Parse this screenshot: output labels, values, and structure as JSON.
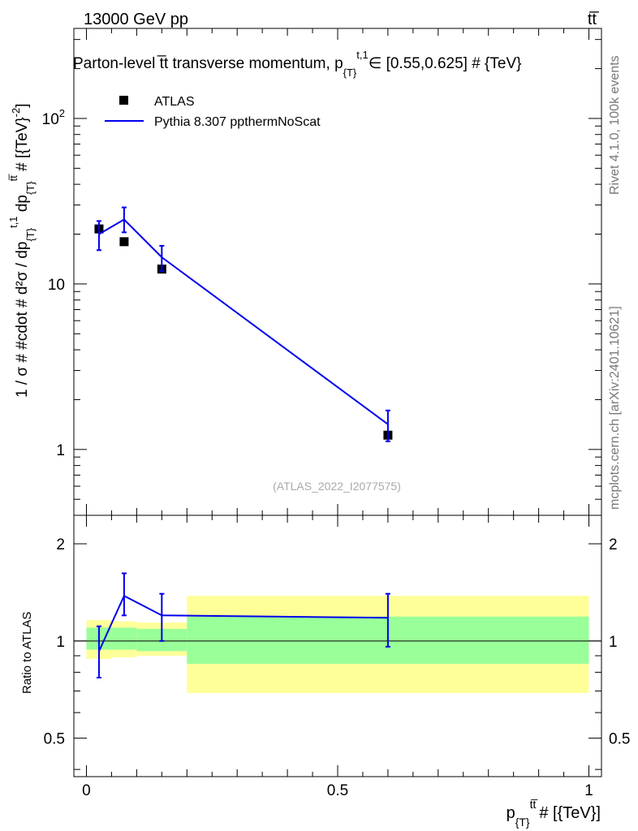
{
  "header": {
    "left": "13000 GeV pp",
    "right": "tt̅"
  },
  "chart_data": {
    "type": "line",
    "title": "Parton-level t̅t transverse momentum, p_{T}^{t,1} ∈ [0.55,0.625] # {TeV}",
    "title_main": "Parton-level t̅t transverse momentum, p",
    "title_sub": "{T}",
    "title_sup": "t,1",
    "title_tail": "∈ [0.55,0.625] # {TeV}",
    "xlabel": "p_{T}^{tt̅} # [{TeV}]",
    "xlabel_main": "p",
    "xlabel_sub": "{T}",
    "xlabel_sup": "tt̅",
    "xlabel_tail": "# [{TeV}]",
    "ylabel": "1 / σ # #cdot # d²σ / dp_{T}^{t,1} dp_{T}^{tt̅} # [{TeV}⁻²]",
    "ylabel_full": "1 / σ # #cdot # d²σ / dp",
    "ratio_ylabel": "Ratio to ATLAS",
    "xlim": [
      -0.025,
      1.025
    ],
    "ylim": [
      0.4,
      350
    ],
    "yscale": "log",
    "ratio_ylim": [
      0.38,
      2.45
    ],
    "ratio_yscale": "log",
    "x_ticks": [
      {
        "value": 0,
        "label": "0"
      },
      {
        "value": 0.5,
        "label": "0.5"
      },
      {
        "value": 1,
        "label": "1"
      }
    ],
    "y_ticks": [
      {
        "value": 1,
        "label": "1"
      },
      {
        "value": 10,
        "label": "10"
      },
      {
        "value": 100,
        "label": "10²"
      }
    ],
    "ratio_y_ticks": [
      {
        "value": 0.5,
        "label": "0.5"
      },
      {
        "value": 1,
        "label": "1"
      },
      {
        "value": 2,
        "label": "2"
      }
    ],
    "legend": [
      {
        "name": "ATLAS",
        "marker": "square"
      },
      {
        "name": "Pythia 8.307 ppthermNoScat",
        "marker": "line"
      }
    ],
    "watermark": "(ATLAS_2022_I2077575)",
    "side_label_top": "Rivet 4.1.0,  100k events",
    "side_label_bottom": "mcplots.cern.ch [arXiv:2401.10621]",
    "bins": [
      {
        "x": 0.025,
        "lo": 0.0,
        "hi": 0.05
      },
      {
        "x": 0.075,
        "lo": 0.05,
        "hi": 0.1
      },
      {
        "x": 0.15,
        "lo": 0.1,
        "hi": 0.2
      },
      {
        "x": 0.6,
        "lo": 0.2,
        "hi": 1.0
      }
    ],
    "series": [
      {
        "name": "ATLAS",
        "x": [
          0.025,
          0.075,
          0.15,
          0.6
        ],
        "y": [
          21.5,
          18.0,
          12.3,
          1.22
        ],
        "color": "#000000"
      },
      {
        "name": "Pythia 8.307 ppthermNoScat",
        "x": [
          0.025,
          0.075,
          0.15,
          0.6
        ],
        "y": [
          20.0,
          24.5,
          14.5,
          1.42
        ],
        "yerr_lo": [
          4.0,
          4.0,
          2.5,
          0.3
        ],
        "yerr_hi": [
          4.0,
          4.5,
          2.5,
          0.3
        ],
        "color": "#0000ee"
      }
    ],
    "ratio": {
      "mc": [
        0.93,
        1.38,
        1.2,
        1.18
      ],
      "mc_err_lo": [
        0.16,
        0.18,
        0.2,
        0.22
      ],
      "mc_err_hi": [
        0.18,
        0.24,
        0.2,
        0.22
      ],
      "band_inner": [
        {
          "lo": 0.94,
          "hi": 1.1
        },
        {
          "lo": 0.94,
          "hi": 1.1
        },
        {
          "lo": 0.93,
          "hi": 1.09
        },
        {
          "lo": 0.85,
          "hi": 1.19
        }
      ],
      "band_outer": [
        {
          "lo": 0.88,
          "hi": 1.16
        },
        {
          "lo": 0.89,
          "hi": 1.15
        },
        {
          "lo": 0.9,
          "hi": 1.14
        },
        {
          "lo": 0.69,
          "hi": 1.38
        }
      ],
      "band_inner_color": "#99ff99",
      "band_outer_color": "#ffff99"
    }
  }
}
